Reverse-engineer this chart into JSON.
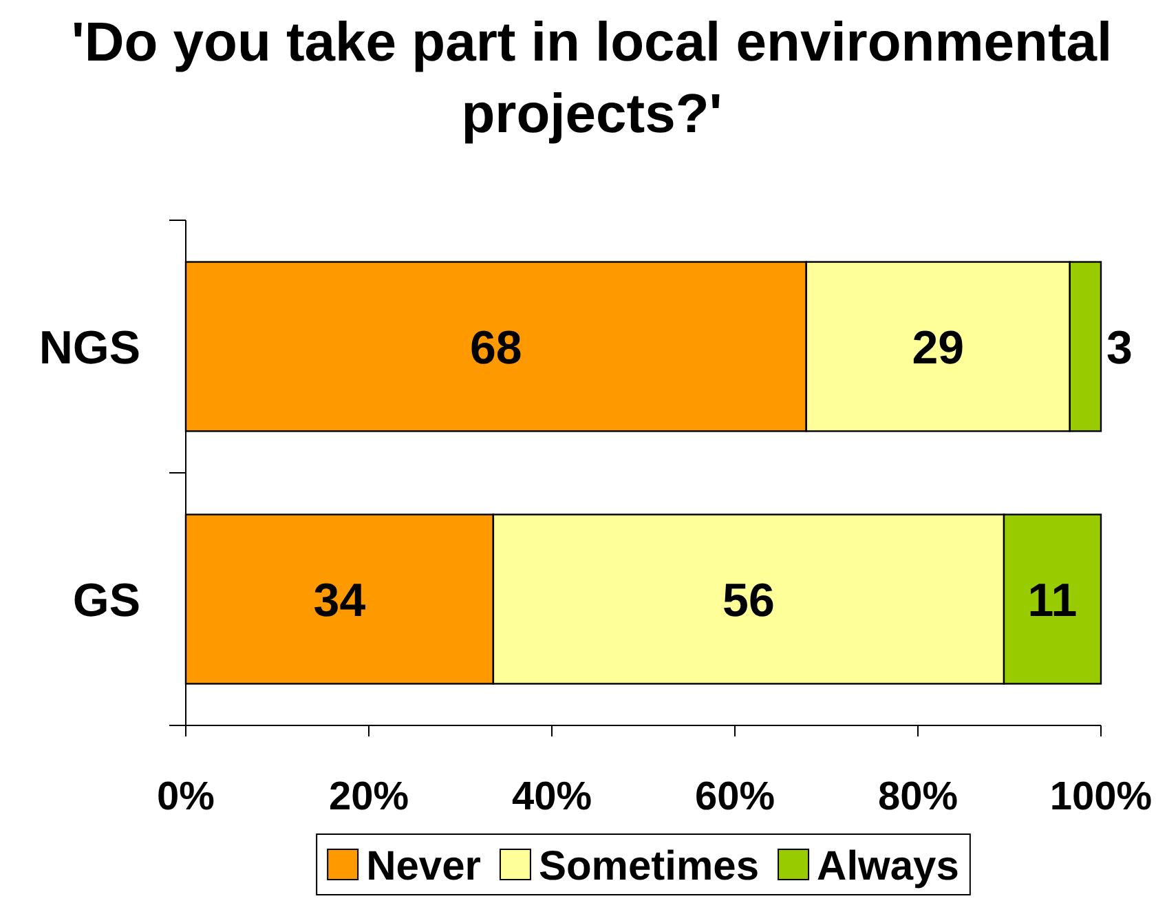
{
  "chart_data": {
    "type": "bar",
    "orientation": "horizontal",
    "stacked": true,
    "title": "'Do you take part in local environmental projects?'",
    "categories": [
      "NGS",
      "GS"
    ],
    "series": [
      {
        "name": "Never",
        "color": "#ff9900",
        "values": [
          67.8,
          33.6
        ],
        "value_labels": [
          "68",
          "34"
        ]
      },
      {
        "name": "Sometimes",
        "color": "#ffff99",
        "values": [
          28.8,
          55.8
        ],
        "value_labels": [
          "29",
          "56"
        ]
      },
      {
        "name": "Always",
        "color": "#99cc00",
        "values": [
          3.4,
          10.6
        ],
        "value_labels": [
          "3",
          "11"
        ]
      }
    ],
    "xlim": [
      0,
      100
    ],
    "xticks": [
      {
        "value": 0,
        "label": "0%"
      },
      {
        "value": 20,
        "label": "20%"
      },
      {
        "value": 40,
        "label": "40%"
      },
      {
        "value": 60,
        "label": "60%"
      },
      {
        "value": 80,
        "label": "80%"
      },
      {
        "value": 100,
        "label": "100%"
      }
    ],
    "legend": "bottom"
  }
}
